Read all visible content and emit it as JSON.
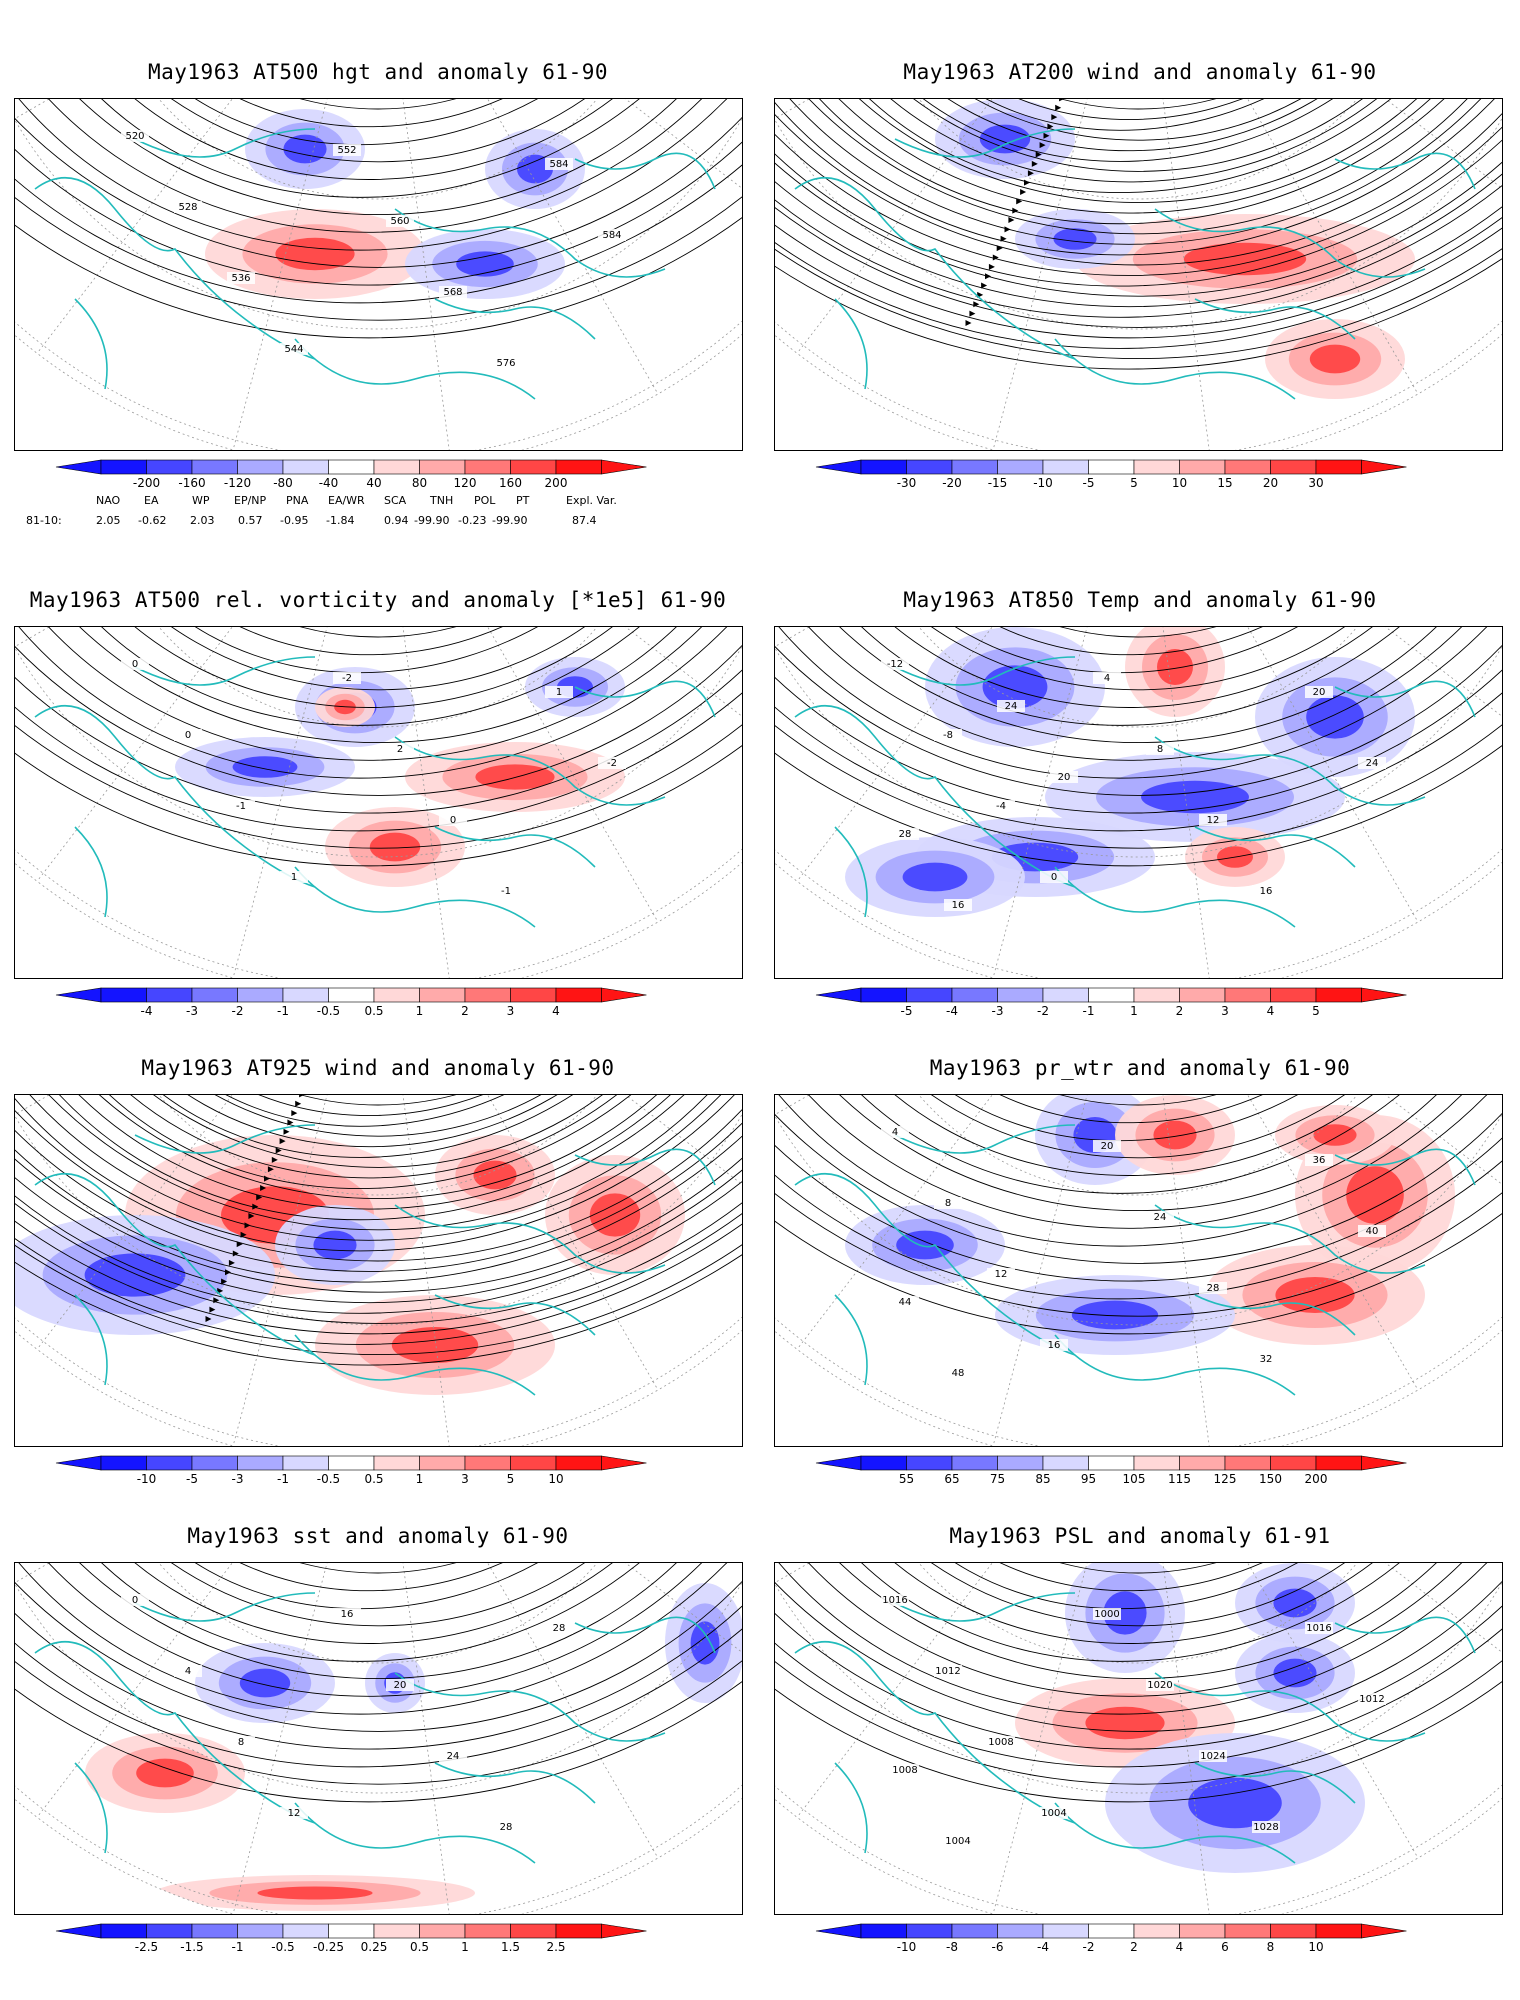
{
  "panels": [
    {
      "title": "May1963 AT500 hgt and anomaly 61-90",
      "kind": "height",
      "contour_labels": [
        "520",
        "528",
        "536",
        "544",
        "552",
        "560",
        "568",
        "576",
        "584",
        "584"
      ],
      "colorbar": {
        "ticks": [
          "-200",
          "-160",
          "-120",
          "-80",
          "-40",
          "40",
          "80",
          "120",
          "160",
          "200"
        ]
      }
    },
    {
      "title": "May1963 AT200 wind and anomaly 61-90",
      "kind": "wind",
      "contour_labels": [],
      "colorbar": {
        "ticks": [
          "-30",
          "-20",
          "-15",
          "-10",
          "-5",
          "5",
          "10",
          "15",
          "20",
          "30"
        ]
      }
    },
    {
      "title": "May1963 AT500 rel. vorticity and anomaly [*1e5] 61-90",
      "kind": "vorticity",
      "contour_labels": [
        "0",
        "0",
        "-1",
        "1",
        "-2",
        "2",
        "0",
        "-1",
        "1",
        "-2"
      ],
      "colorbar": {
        "ticks": [
          "-4",
          "-3",
          "-2",
          "-1",
          "-0.5",
          "0.5",
          "1",
          "2",
          "3",
          "4"
        ]
      }
    },
    {
      "title": "May1963 AT850 Temp and anomaly 61-90",
      "kind": "temp",
      "contour_labels": [
        "-12",
        "-8",
        "-4",
        "0",
        "4",
        "8",
        "12",
        "16",
        "20",
        "24",
        "28",
        "16",
        "24",
        "20"
      ],
      "colorbar": {
        "ticks": [
          "-5",
          "-4",
          "-3",
          "-2",
          "-1",
          "1",
          "2",
          "3",
          "4",
          "5"
        ]
      }
    },
    {
      "title": "May1963 AT925 wind and anomaly 61-90",
      "kind": "wind925",
      "contour_labels": [],
      "colorbar": {
        "ticks": [
          "-10",
          "-5",
          "-3",
          "-1",
          "-0.5",
          "0.5",
          "1",
          "3",
          "5",
          "10"
        ]
      }
    },
    {
      "title": "May1963 pr_wtr and anomaly 61-90",
      "kind": "prwtr",
      "contour_labels": [
        "4",
        "8",
        "12",
        "16",
        "20",
        "24",
        "28",
        "32",
        "36",
        "40",
        "44",
        "48"
      ],
      "colorbar": {
        "ticks": [
          "55",
          "65",
          "75",
          "85",
          "95",
          "105",
          "115",
          "125",
          "150",
          "200"
        ]
      }
    },
    {
      "title": "May1963 sst and anomaly 61-90",
      "kind": "sst",
      "contour_labels": [
        "0",
        "4",
        "8",
        "12",
        "16",
        "20",
        "24",
        "28",
        "28"
      ],
      "colorbar": {
        "ticks": [
          "-2.5",
          "-1.5",
          "-1",
          "-0.5",
          "-0.25",
          "0.25",
          "0.5",
          "1",
          "1.5",
          "2.5"
        ]
      }
    },
    {
      "title": "May1963 PSL and anomaly 61-91",
      "kind": "psl",
      "contour_labels": [
        "1016",
        "1012",
        "1008",
        "1004",
        "1000",
        "1020",
        "1024",
        "1028",
        "1016",
        "1012",
        "1008",
        "1004"
      ],
      "colorbar": {
        "ticks": [
          "-10",
          "-8",
          "-6",
          "-4",
          "-2",
          "2",
          "4",
          "6",
          "8",
          "10"
        ]
      }
    }
  ],
  "teleconnections": {
    "headers": [
      "NAO",
      "EA",
      "WP",
      "EP/NP",
      "PNA",
      "EA/WR",
      "SCA",
      "TNH",
      "POL",
      "PT",
      "Expl. Var."
    ],
    "row_label": "81-10:",
    "values": [
      "2.05",
      "-0.62",
      "2.03",
      "0.57",
      "-0.95",
      "-1.84",
      "0.94",
      "-99.90",
      "-0.23",
      "-99.90",
      "87.4"
    ]
  },
  "colors": {
    "neg": [
      "#1414ff",
      "#4646ff",
      "#7878ff",
      "#aaaaff",
      "#d8d8ff"
    ],
    "pos": [
      "#ffd8d8",
      "#ffaaaa",
      "#ff7878",
      "#ff4646",
      "#ff1414"
    ],
    "coast": "#22bbbb",
    "grid": "#999999"
  }
}
